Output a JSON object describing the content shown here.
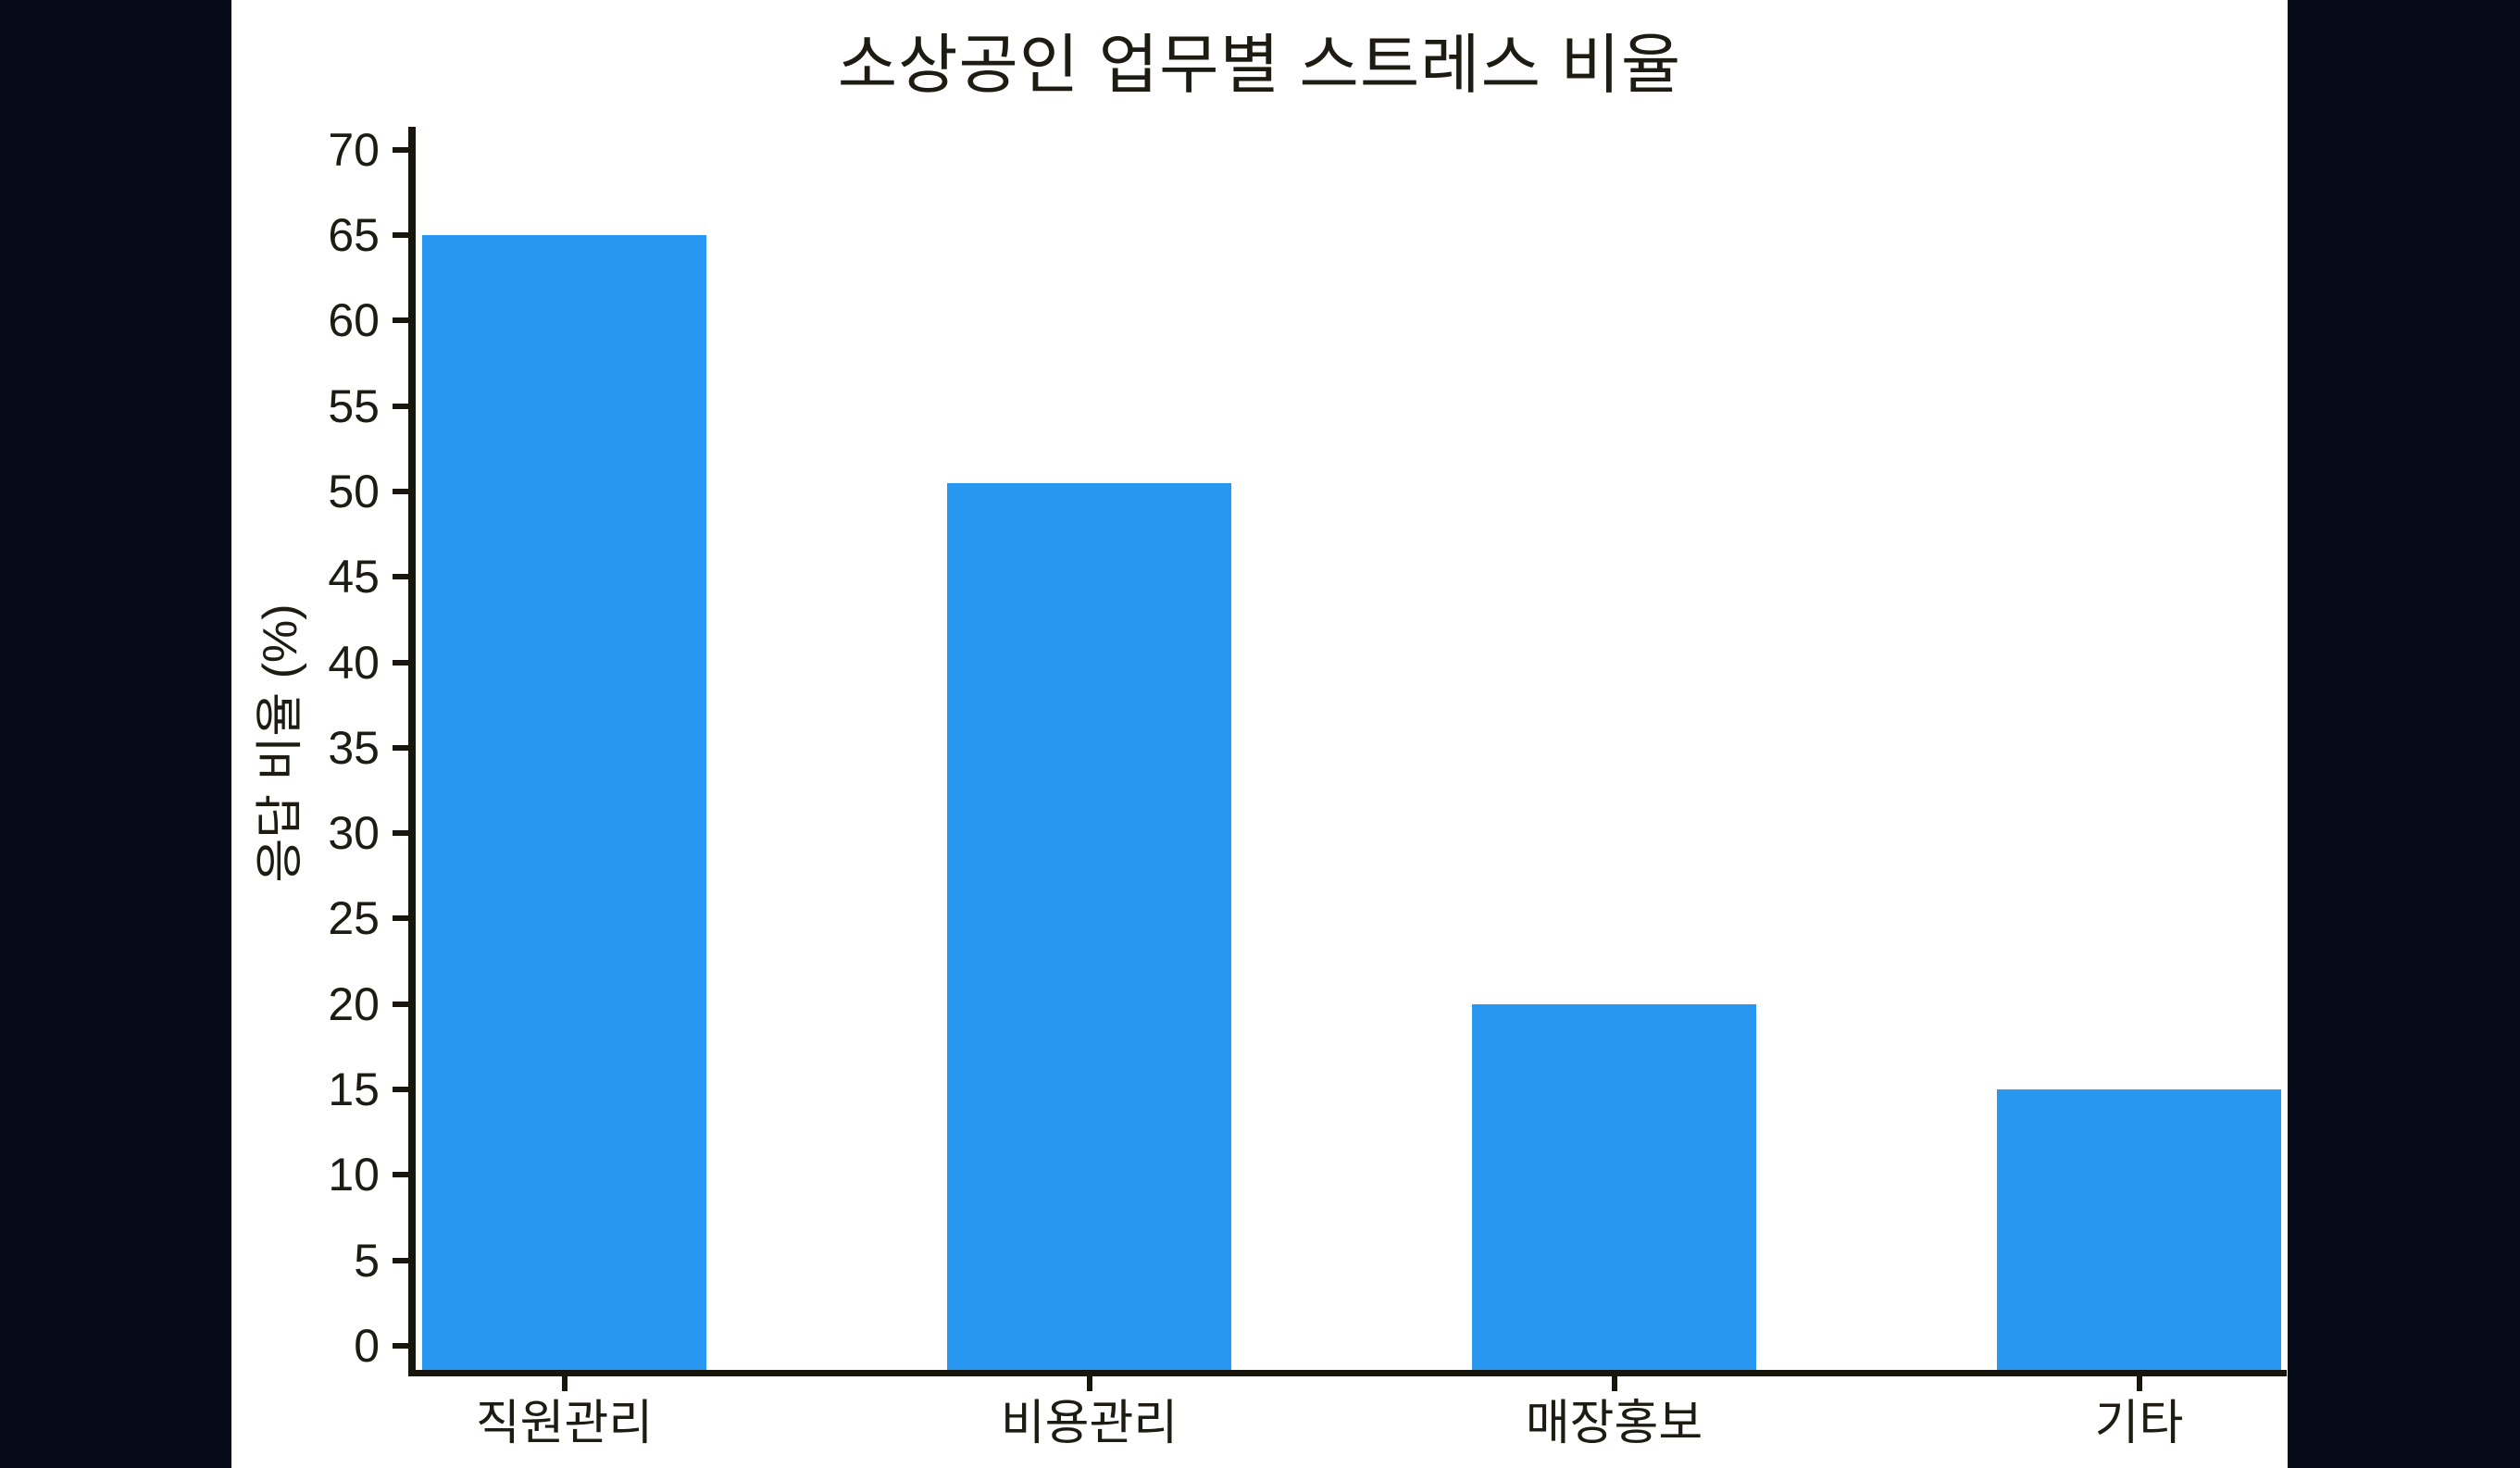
{
  "page": {
    "background_color": "#050b18",
    "figure_background_color": "#ffffff"
  },
  "chart_data": {
    "type": "bar",
    "title": "소상공인 업무별 스트레스 비율",
    "ylabel": "응답 비율 (%)",
    "xlabel": "",
    "categories": [
      "직원관리",
      "비용관리",
      "매장홍보",
      "기타"
    ],
    "values": [
      65,
      50.5,
      20,
      15
    ],
    "yticks": [
      0,
      5,
      10,
      15,
      20,
      25,
      30,
      35,
      40,
      45,
      50,
      55,
      60,
      65,
      70
    ],
    "ylim": [
      0,
      70
    ],
    "grid": false,
    "legend": false,
    "bar_color": "#2797f1",
    "axis_color": "#17150c",
    "text_color": "#1d1b12"
  }
}
